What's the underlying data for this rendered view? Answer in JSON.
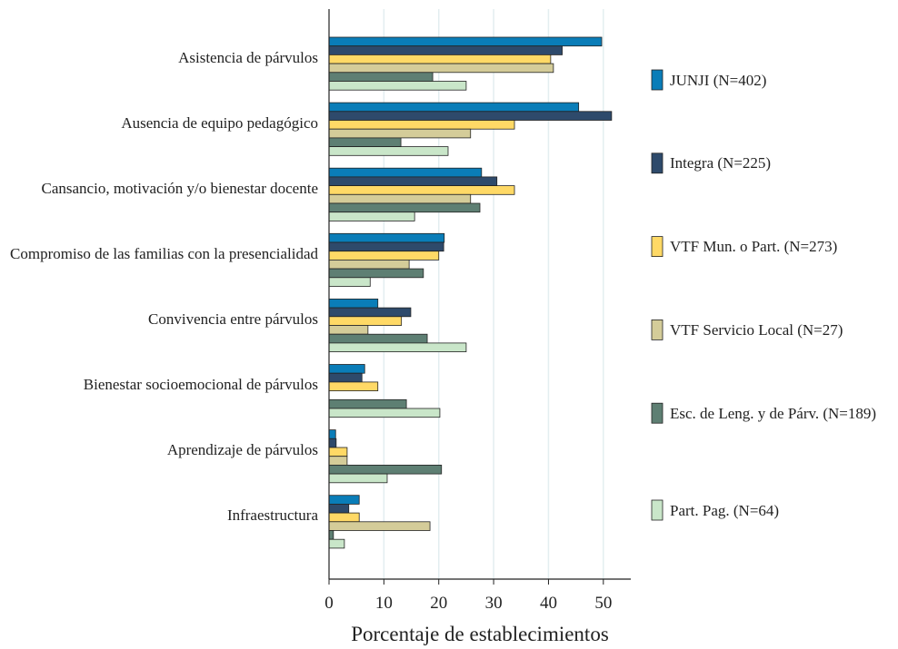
{
  "chart_data": {
    "type": "bar",
    "orientation": "horizontal",
    "x_label": "Porcentaje de establecimientos",
    "categories": [
      "Asistencia de párvulos",
      "Ausencia de equipo pedagógico",
      "Cansancio, motivación y/o bienestar docente",
      "Compromiso de las familias con la presencialidad",
      "Convivencia entre párvulos",
      "Bienestar socioemocional de párvulos",
      "Aprendizaje de párvulos",
      "Infraestructura"
    ],
    "series": [
      {
        "name": "JUNJI (N=402)",
        "color": "#0a7db8",
        "values": [
          49.7,
          45.5,
          27.8,
          21.0,
          8.9,
          6.5,
          1.2,
          5.5
        ]
      },
      {
        "name": "Integra (N=225)",
        "color": "#2e4a6b",
        "values": [
          42.5,
          51.5,
          30.6,
          20.9,
          14.9,
          6.0,
          1.3,
          3.6
        ]
      },
      {
        "name": "VTF Mun. o Part. (N=273)",
        "color": "#ffd966",
        "values": [
          40.4,
          33.8,
          33.8,
          20.0,
          13.2,
          8.9,
          3.3,
          5.5
        ]
      },
      {
        "name": "VTF Servicio Local (N=27)",
        "color": "#d4cc99",
        "values": [
          40.9,
          25.8,
          25.8,
          14.6,
          7.1,
          0,
          3.3,
          18.4
        ]
      },
      {
        "name": "Esc. de Leng. y de Párv. (N=189)",
        "color": "#5e7f73",
        "values": [
          18.9,
          13.1,
          27.5,
          17.2,
          17.9,
          14.1,
          20.5,
          0.8
        ]
      },
      {
        "name": "Part. Pag. (N=64)",
        "color": "#c9e6c9",
        "values": [
          25.0,
          21.7,
          15.6,
          7.5,
          25.0,
          20.2,
          10.6,
          2.8
        ]
      }
    ],
    "xlim": [
      0,
      55
    ],
    "xticks": [
      0,
      10,
      20,
      30,
      40,
      50
    ],
    "grid": true
  }
}
